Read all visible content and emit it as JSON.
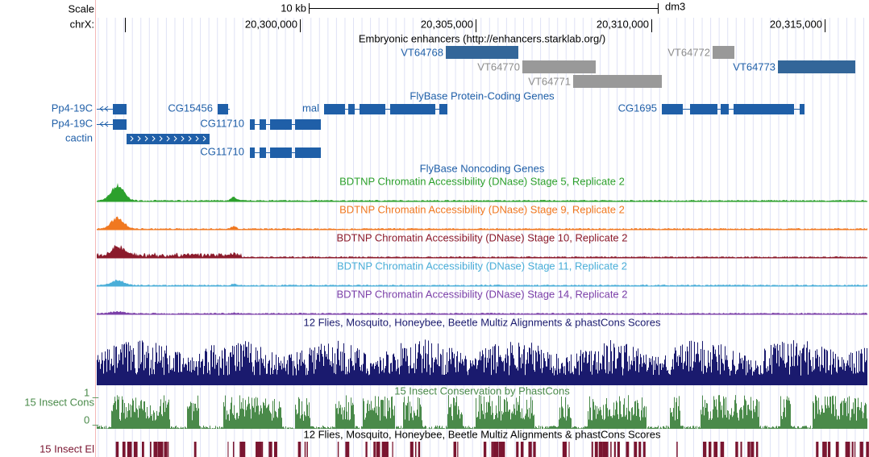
{
  "ruler": {
    "scale_label": "Scale",
    "chrom_label": "chrX:",
    "scale_size": "10 kb",
    "assembly": "dm3",
    "positions": [
      "20,300,000",
      "20,305,000",
      "20,310,000",
      "20,315,000"
    ]
  },
  "enhancers": {
    "title": "Embryonic enhancers (http://enhancers.starklab.org/)",
    "items": [
      "VT64768",
      "VT64770",
      "VT64771",
      "VT64772",
      "VT64773"
    ]
  },
  "coding_genes": {
    "title": "FlyBase Protein-Coding Genes",
    "items": [
      "Pp4-19C",
      "Pp4-19C",
      "cactin",
      "CG15456",
      "CG11710",
      "CG11710",
      "mal",
      "CG1695"
    ]
  },
  "noncoding_genes": {
    "title": "FlyBase Noncoding Genes"
  },
  "dnase_tracks": [
    "BDTNP Chromatin Accessibility (DNase) Stage 5, Replicate 2",
    "BDTNP Chromatin Accessibility (DNase) Stage 9, Replicate 2",
    "BDTNP Chromatin Accessibility (DNase) Stage 10, Replicate 2",
    "BDTNP Chromatin Accessibility (DNase) Stage 11, Replicate 2",
    "BDTNP Chromatin Accessibility (DNase) Stage 14, Replicate 2"
  ],
  "multiz_title": "12 Flies, Mosquito, Honeybee, Beetle Multiz Alignments & phastCons Scores",
  "phastcons": {
    "title": "15 Insect Conservation by PhastCons",
    "label": "15 Insect Cons",
    "max_label": "1 _",
    "min_label": "0 _"
  },
  "elements": {
    "title": "12 Flies, Mosquito, Honeybee, Beetle Multiz Alignments & phastCons Scores",
    "label": "15 Insect El"
  }
}
